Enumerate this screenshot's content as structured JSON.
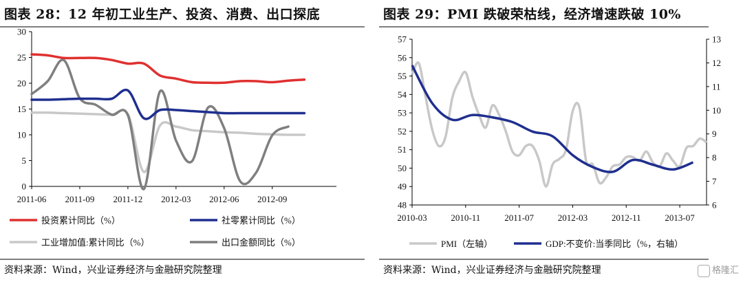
{
  "left": {
    "title": "图表 28：12 年初工业生产、投资、消费、出口探底",
    "source": "资料来源：Wind，兴业证券经济与金融研究院整理",
    "chart_data": {
      "type": "line",
      "x_tick_labels": [
        "2011-06",
        "2011-09",
        "2011-12",
        "2012-03",
        "2012-06",
        "2012-09"
      ],
      "y_ticks": [
        0,
        5,
        10,
        15,
        20,
        25,
        30
      ],
      "ylim": [
        0,
        30
      ],
      "x_months_from_2011_06": [
        0,
        1,
        2,
        3,
        4,
        5,
        6,
        7,
        8,
        9,
        10,
        11,
        12,
        13,
        14,
        15,
        16,
        17,
        18,
        19
      ],
      "series": [
        {
          "name": "投资累计同比（%）",
          "color": "#e03030",
          "values": [
            25.6,
            25.4,
            24.9,
            24.9,
            24.9,
            24.5,
            23.8,
            23.8,
            21.5,
            20.9,
            20.2,
            20.1,
            20.1,
            20.4,
            20.4,
            20.2,
            20.5,
            20.7,
            null,
            null
          ]
        },
        {
          "name": "社零累计同比（%）",
          "color": "#1f2f8f",
          "values": [
            16.8,
            16.8,
            16.9,
            17.0,
            17.0,
            17.0,
            18.6,
            13.2,
            14.8,
            14.8,
            14.6,
            14.4,
            14.2,
            14.2,
            14.2,
            14.2,
            14.2,
            14.2,
            null,
            null
          ]
        },
        {
          "name": "工业增加值:累计同比（%）",
          "color": "#c8c8c8",
          "values": [
            14.3,
            14.3,
            14.2,
            14.1,
            14.0,
            13.9,
            14.0,
            2.8,
            11.8,
            11.6,
            10.9,
            10.7,
            10.5,
            10.4,
            10.2,
            10.1,
            10.0,
            10.0,
            null,
            null
          ]
        },
        {
          "name": "出口金额同比（%）",
          "color": "#7f7f7f",
          "values": [
            17.9,
            20.4,
            24.5,
            17.1,
            15.8,
            13.9,
            13.8,
            -0.5,
            18.4,
            8.9,
            4.9,
            15.3,
            11.3,
            1.0,
            2.7,
            9.9,
            11.6,
            null,
            null,
            null
          ]
        }
      ]
    },
    "legend": [
      {
        "label": "投资累计同比（%）",
        "color": "#e03030"
      },
      {
        "label": "社零累计同比（%）",
        "color": "#1f2f8f"
      },
      {
        "label": "工业增加值:累计同比（%）",
        "color": "#c8c8c8"
      },
      {
        "label": "出口金额同比（%）",
        "color": "#7f7f7f"
      }
    ]
  },
  "right": {
    "title": "图表 29：PMI 跌破荣枯线，经济增速跌破 10%",
    "source": "资料来源：Wind，兴业证券经济与金融研究院整理",
    "watermark": "格隆汇",
    "chart_data": {
      "type": "line",
      "x_tick_labels": [
        "2010-03",
        "2010-11",
        "2011-07",
        "2012-03",
        "2012-11",
        "2013-07"
      ],
      "ylim_left": [
        48,
        57
      ],
      "y_ticks_left": [
        48,
        49,
        50,
        51,
        52,
        53,
        54,
        55,
        56,
        57
      ],
      "ylim_right": [
        6,
        13
      ],
      "y_ticks_right": [
        6,
        7,
        8,
        9,
        10,
        11,
        12,
        13
      ],
      "series": [
        {
          "name": "PMI（左轴）",
          "color": "#c8c8c8",
          "axis": "left",
          "months_from_2010_03": [
            0,
            1,
            2,
            3,
            4,
            5,
            6,
            7,
            8,
            9,
            10,
            11,
            12,
            13,
            14,
            15,
            16,
            17,
            18,
            19,
            20,
            21,
            22,
            23,
            24,
            25,
            26,
            27,
            28,
            29,
            30,
            31,
            32,
            33,
            34,
            35,
            36,
            37,
            38,
            39,
            40,
            41,
            42,
            43,
            44
          ],
          "values": [
            55.1,
            55.7,
            53.9,
            52.1,
            51.2,
            51.7,
            53.8,
            54.7,
            55.2,
            53.9,
            52.9,
            52.2,
            53.4,
            52.9,
            52.0,
            50.9,
            50.7,
            51.2,
            51.2,
            50.4,
            49.0,
            50.2,
            50.5,
            51.0,
            53.1,
            53.3,
            50.4,
            50.2,
            49.2,
            49.5,
            50.1,
            50.2,
            50.6,
            50.6,
            50.4,
            50.9,
            50.3,
            50.1,
            50.8,
            50.4,
            50.1,
            51.1,
            51.2,
            51.6,
            51.4
          ]
        },
        {
          "name": "GDP:不变价:当季同比（%，右轴）",
          "color": "#1f2f8f",
          "axis": "right",
          "quarters": [
            0,
            3,
            6,
            9,
            12,
            15,
            18,
            21,
            24,
            27,
            30,
            33,
            36,
            39,
            42
          ],
          "values": [
            11.9,
            10.3,
            9.6,
            9.8,
            9.7,
            9.5,
            9.1,
            8.9,
            8.1,
            7.6,
            7.4,
            7.9,
            7.7,
            7.5,
            7.8
          ]
        }
      ]
    },
    "legend": [
      {
        "label": "PMI（左轴）",
        "color": "#c8c8c8"
      },
      {
        "label": "GDP:不变价:当季同比（%，右轴）",
        "color": "#1f2f8f"
      }
    ]
  }
}
